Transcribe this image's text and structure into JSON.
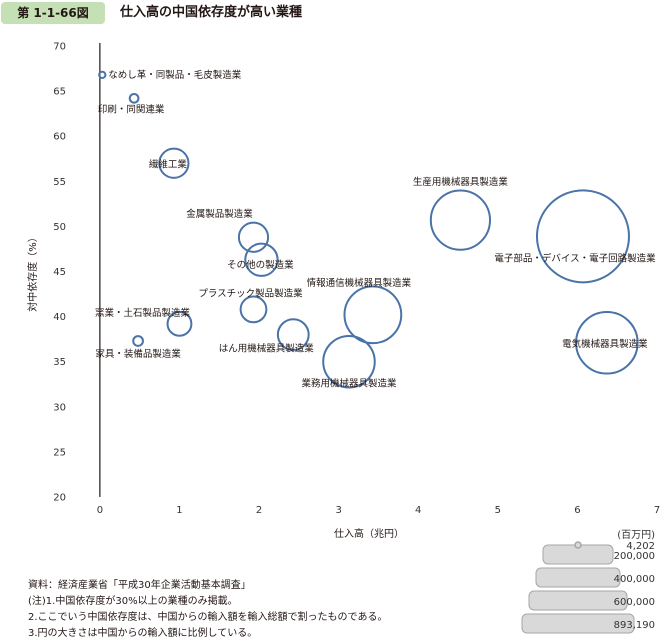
{
  "header": {
    "figure_number": "第 1-1-66図",
    "title": "仕入高の中国依存度が高い業種"
  },
  "notes": [
    "資料：経済産業省「平成30年企業活動基本調査」",
    "(注)1.中国依存度が30%以上の業種のみ掲載。",
    "2.ここでいう中国依存度は、中国からの輸入額を輸入総額で割ったものである。",
    "3.円の大きさは中国からの輸入額に比例している。"
  ],
  "size_legend": {
    "unit": "(百万円)",
    "values": [
      "4,202",
      "200,000",
      "400,000",
      "600,000",
      "893,190"
    ]
  },
  "colors": {
    "bubble_stroke": "#4a73a8",
    "axis": "#231815",
    "badge": "#c5e0b4",
    "legend_fill": "#d9d9d9",
    "legend_stroke": "#a6a6a6"
  },
  "chart_data": {
    "type": "scatter",
    "title": "",
    "xlabel": "仕入高（兆円）",
    "ylabel": "対中依存度（%）",
    "xlim": [
      -0.3,
      7
    ],
    "ylim": [
      20,
      70
    ],
    "xticks": [
      0,
      1,
      2,
      3,
      4,
      5,
      6,
      7
    ],
    "yticks": [
      20,
      25,
      30,
      35,
      40,
      45,
      50,
      55,
      60,
      65,
      70
    ],
    "grid": false,
    "size_encoding": "中国からの輸入額（百万円）",
    "points": [
      {
        "label": "なめし革・同製品・毛皮製造業",
        "x": 0.03,
        "y": 66.8,
        "size": 4202
      },
      {
        "label": "印刷・同関連業",
        "x": 0.43,
        "y": 64.2,
        "size": 8000
      },
      {
        "label": "繊維工業",
        "x": 0.93,
        "y": 57.0,
        "size": 90000
      },
      {
        "label": "金属製品製造業",
        "x": 1.93,
        "y": 48.8,
        "size": 90000
      },
      {
        "label": "その他の製造業",
        "x": 2.03,
        "y": 46.3,
        "size": 110000
      },
      {
        "label": "プラスチック製品製造業",
        "x": 1.93,
        "y": 40.8,
        "size": 70000
      },
      {
        "label": "窯業・土石製品製造業",
        "x": 1.0,
        "y": 39.2,
        "size": 60000
      },
      {
        "label": "家具・装備品製造業",
        "x": 0.48,
        "y": 37.3,
        "size": 10000
      },
      {
        "label": "はん用機械器具製造業",
        "x": 2.43,
        "y": 38.0,
        "size": 100000
      },
      {
        "label": "情報通信機械器具製造業",
        "x": 3.43,
        "y": 40.2,
        "size": 340000
      },
      {
        "label": "業務用機械器具製造業",
        "x": 3.13,
        "y": 35.0,
        "size": 280000
      },
      {
        "label": "生産用機械器具製造業",
        "x": 4.53,
        "y": 50.7,
        "size": 370000
      },
      {
        "label": "電子部品・デバイス・電子回路製造業",
        "x": 6.07,
        "y": 48.9,
        "size": 893190
      },
      {
        "label": "電気機械器具製造業",
        "x": 6.37,
        "y": 37.1,
        "size": 400000
      }
    ]
  }
}
